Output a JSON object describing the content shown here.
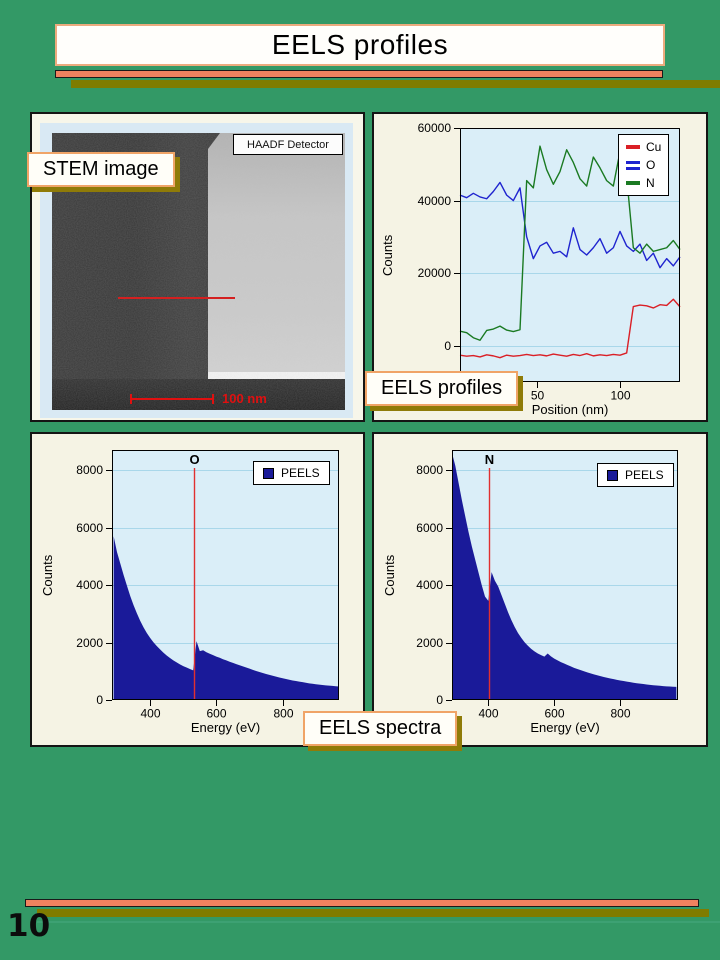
{
  "page": {
    "title": "EELS profiles",
    "page_number": "10"
  },
  "colors": {
    "background": "#339966",
    "salmon_bar": "#f0825f",
    "olive_bar": "#7f7c00",
    "teal_line": "#3da173",
    "panel_bg": "#f5f3e4",
    "plot_bg": "#daeef8",
    "grid": "#a9d7ea",
    "marker_line": "#e03030",
    "scalebar_red": "#e01010",
    "navy": "#1a1a99"
  },
  "stem_panel": {
    "label": "STEM image",
    "detector_label": "HAADF Detector",
    "scalebar_label": "100 nm"
  },
  "labels": {
    "profiles": "EELS profiles",
    "spectra": "EELS spectra"
  },
  "chart_data": {
    "profiles": {
      "type": "line",
      "xlabel": "Position (nm)",
      "ylabel": "Counts",
      "xlim": [
        4,
        136
      ],
      "ylim": [
        -10000,
        60000
      ],
      "x_ticks": [
        50,
        100
      ],
      "y_ticks": [
        0,
        20000,
        40000,
        60000
      ],
      "legend_position": "top-right",
      "grid": true,
      "x": [
        4,
        8,
        12,
        16,
        20,
        24,
        28,
        32,
        36,
        40,
        44,
        48,
        52,
        56,
        60,
        64,
        68,
        72,
        76,
        80,
        84,
        88,
        92,
        96,
        100,
        104,
        108,
        112,
        116,
        120,
        124,
        128,
        132,
        136
      ],
      "series": [
        {
          "name": "Cu",
          "color": "#da1f26",
          "values": [
            -2600,
            -2900,
            -2700,
            -3100,
            -2500,
            -2800,
            -3300,
            -2600,
            -2900,
            -2700,
            -2400,
            -2700,
            -2500,
            -2800,
            -2300,
            -2600,
            -2900,
            -2400,
            -2700,
            -2200,
            -2800,
            -2500,
            -2700,
            -2400,
            -2600,
            -2000,
            10800,
            11200,
            11000,
            10400,
            11300,
            11100,
            12800,
            10700
          ]
        },
        {
          "name": "O",
          "color": "#1f24cf",
          "values": [
            41500,
            40800,
            42000,
            41000,
            40500,
            42500,
            45000,
            41500,
            40000,
            43500,
            30000,
            24000,
            27500,
            28500,
            25500,
            26000,
            24500,
            32500,
            26500,
            25000,
            27000,
            29500,
            25500,
            27000,
            31500,
            27500,
            26000,
            28000,
            23500,
            25500,
            21500,
            24000,
            22000,
            24500
          ]
        },
        {
          "name": "N",
          "color": "#1a7a22",
          "values": [
            4000,
            3600,
            2200,
            1500,
            4200,
            4600,
            5400,
            4300,
            3900,
            4400,
            45500,
            43500,
            55000,
            48500,
            44500,
            48000,
            54000,
            50500,
            46000,
            44000,
            52000,
            49000,
            45500,
            44000,
            53500,
            46500,
            27000,
            25500,
            28000,
            26000,
            26500,
            27000,
            29000,
            26500
          ]
        }
      ]
    },
    "spectrum_o": {
      "type": "area",
      "xlabel": "Energy (eV)",
      "ylabel": "Counts",
      "xlim": [
        285,
        970
      ],
      "ylim": [
        0,
        8700
      ],
      "x_ticks": [
        400,
        600,
        800
      ],
      "y_ticks": [
        0,
        2000,
        4000,
        6000,
        8000
      ],
      "legend_position": "top-right",
      "grid": true,
      "marker": {
        "label": "O",
        "energy": 531
      },
      "x": [
        290,
        300,
        310,
        320,
        330,
        340,
        350,
        360,
        370,
        380,
        390,
        400,
        410,
        420,
        430,
        440,
        450,
        460,
        470,
        480,
        490,
        500,
        510,
        520,
        530,
        540,
        550,
        560,
        570,
        580,
        590,
        600,
        610,
        620,
        630,
        640,
        650,
        660,
        670,
        680,
        690,
        700,
        710,
        720,
        730,
        740,
        750,
        760,
        770,
        780,
        790,
        800,
        810,
        820,
        830,
        840,
        850,
        860,
        870,
        880,
        890,
        900,
        910,
        920,
        930,
        940,
        950,
        960,
        970
      ],
      "series": [
        {
          "name": "PEELS",
          "color": "#1a1a99",
          "values": [
            5700,
            5150,
            4750,
            4350,
            3980,
            3620,
            3300,
            3020,
            2760,
            2530,
            2330,
            2160,
            2010,
            1880,
            1760,
            1650,
            1550,
            1460,
            1380,
            1310,
            1240,
            1180,
            1130,
            1080,
            1030,
            2050,
            1700,
            1730,
            1660,
            1610,
            1560,
            1510,
            1470,
            1420,
            1380,
            1330,
            1290,
            1250,
            1210,
            1170,
            1130,
            1090,
            1050,
            1010,
            975,
            940,
            905,
            875,
            845,
            815,
            785,
            755,
            730,
            705,
            680,
            660,
            640,
            620,
            600,
            580,
            565,
            550,
            535,
            520,
            510,
            500,
            490,
            480,
            470
          ]
        }
      ]
    },
    "spectrum_n": {
      "type": "area",
      "xlabel": "Energy (eV)",
      "ylabel": "Counts",
      "xlim": [
        290,
        975
      ],
      "ylim": [
        0,
        8700
      ],
      "x_ticks": [
        400,
        600,
        800
      ],
      "y_ticks": [
        0,
        2000,
        4000,
        6000,
        8000
      ],
      "legend_position": "top-right",
      "grid": true,
      "marker": {
        "label": "N",
        "energy": 401
      },
      "x": [
        290,
        300,
        310,
        320,
        330,
        340,
        350,
        360,
        370,
        380,
        390,
        400,
        410,
        420,
        430,
        440,
        450,
        460,
        470,
        480,
        490,
        500,
        510,
        520,
        530,
        540,
        550,
        560,
        570,
        580,
        590,
        600,
        610,
        620,
        630,
        640,
        650,
        660,
        670,
        680,
        690,
        700,
        710,
        720,
        730,
        740,
        750,
        760,
        770,
        780,
        790,
        800,
        810,
        820,
        830,
        840,
        850,
        860,
        870,
        880,
        890,
        900,
        910,
        920,
        930,
        940,
        950,
        960,
        970
      ],
      "series": [
        {
          "name": "PEELS",
          "color": "#1a1a99",
          "values": [
            8600,
            8150,
            7550,
            6950,
            6400,
            5850,
            5350,
            4900,
            4450,
            4000,
            3600,
            3450,
            4450,
            4150,
            3950,
            3650,
            3350,
            3050,
            2780,
            2540,
            2330,
            2160,
            2010,
            1890,
            1780,
            1690,
            1620,
            1560,
            1510,
            1620,
            1520,
            1440,
            1380,
            1320,
            1270,
            1220,
            1170,
            1120,
            1080,
            1040,
            1000,
            960,
            925,
            890,
            860,
            830,
            800,
            775,
            750,
            725,
            700,
            680,
            660,
            640,
            620,
            600,
            585,
            570,
            555,
            540,
            525,
            515,
            505,
            495,
            485,
            475,
            468,
            460,
            455
          ]
        }
      ]
    }
  }
}
